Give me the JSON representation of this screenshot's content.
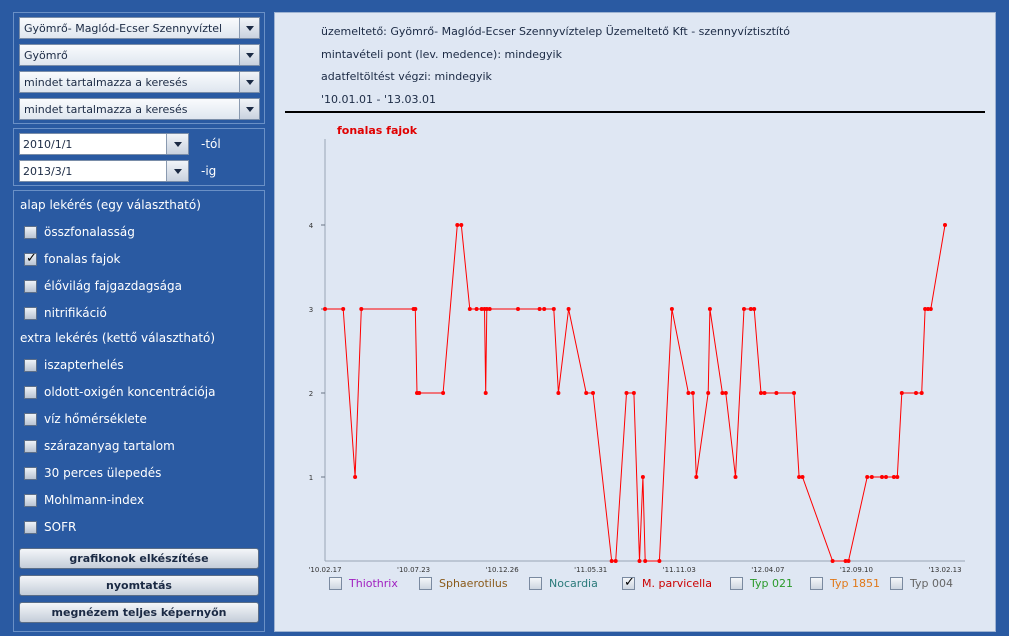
{
  "filters": {
    "operator_select": "Gyömrő- Maglód-Ecser Szennyvíztel",
    "location_select": "Gyömrő",
    "search_mode_1": "mindet tartalmazza a keresés",
    "search_mode_2": "mindet tartalmazza a keresés"
  },
  "dates": {
    "from_value": "2010/1/1",
    "from_suffix": "-tól",
    "to_value": "2013/3/1",
    "to_suffix": "-ig"
  },
  "options": {
    "basic_heading": "alap lekérés (egy választható)",
    "basic_items": [
      {
        "label": "összfonalasság",
        "checked": false
      },
      {
        "label": "fonalas fajok",
        "checked": true
      },
      {
        "label": "élővilág fajgazdagsága",
        "checked": false
      },
      {
        "label": "nitrifikáció",
        "checked": false
      }
    ],
    "extra_heading": "extra lekérés (kettő választható)",
    "extra_items": [
      {
        "label": "iszapterhelés",
        "checked": false
      },
      {
        "label": "oldott-oxigén koncentrációja",
        "checked": false
      },
      {
        "label": "víz hőmérséklete",
        "checked": false
      },
      {
        "label": "szárazanyag tartalom",
        "checked": false
      },
      {
        "label": "30 perces ülepedés",
        "checked": false
      },
      {
        "label": "Mohlmann-index",
        "checked": false
      },
      {
        "label": "SOFR",
        "checked": false
      }
    ]
  },
  "buttons": {
    "make_charts": "grafikonok elkészítése",
    "print": "nyomtatás",
    "fullscreen": "megnézem teljes képernyőn"
  },
  "header": {
    "operator_line": "üzemeltető: Gyömrő- Maglód-Ecser Szennyvíztelep Üzemeltető Kft - szennyvíztisztító",
    "sampling_line": "mintavételi pont (lev. medence): mindegyik",
    "uploader_line": "adatfeltöltést végzi: mindegyik",
    "period_line": "'10.01.01 - '13.03.01"
  },
  "colors": {
    "series_line": "#ff0000",
    "title": "#e00000",
    "legend_thiothrix": "#a020c0",
    "legend_sphaerotilus": "#8a5a1a",
    "legend_nocardia": "#2a7a7a",
    "legend_mparvicella": "#cc0000",
    "legend_typ021": "#2a9a2a",
    "legend_typ1851": "#e07818",
    "legend_typ004": "#666666"
  },
  "legend": [
    {
      "label": "Thiothrix",
      "checked": false,
      "color_key": "legend_thiothrix"
    },
    {
      "label": "Sphaerotilus",
      "checked": false,
      "color_key": "legend_sphaerotilus"
    },
    {
      "label": "Nocardia",
      "checked": false,
      "color_key": "legend_nocardia"
    },
    {
      "label": "M. parvicella",
      "checked": true,
      "color_key": "legend_mparvicella"
    },
    {
      "label": "Typ 021",
      "checked": false,
      "color_key": "legend_typ021"
    },
    {
      "label": "Typ 1851",
      "checked": false,
      "color_key": "legend_typ1851"
    },
    {
      "label": "Typ 004",
      "checked": false,
      "color_key": "legend_typ004"
    }
  ],
  "chart_data": {
    "type": "line",
    "title": "fonalas fajok",
    "xlabel": "",
    "ylabel": "",
    "ylim": [
      0,
      5
    ],
    "yticks": [
      1,
      2,
      3,
      4
    ],
    "xlim": [
      "2010-02-17",
      "2013-02-13"
    ],
    "xticks": [
      "'10.02.17",
      "'10.07.23",
      "'10.12.26",
      "'11.05.31",
      "'11.11.03",
      "'12.04.07",
      "'12.09.10",
      "'13.02.13"
    ],
    "grid": false,
    "series": [
      {
        "name": "M. parvicella",
        "points": [
          {
            "x": "2010-02-17",
            "y": 3
          },
          {
            "x": "2010-03-21",
            "y": 3
          },
          {
            "x": "2010-04-11",
            "y": 1
          },
          {
            "x": "2010-04-22",
            "y": 3
          },
          {
            "x": "2010-07-23",
            "y": 3
          },
          {
            "x": "2010-07-26",
            "y": 3
          },
          {
            "x": "2010-07-29",
            "y": 2
          },
          {
            "x": "2010-08-02",
            "y": 2
          },
          {
            "x": "2010-09-13",
            "y": 2
          },
          {
            "x": "2010-10-08",
            "y": 4
          },
          {
            "x": "2010-10-15",
            "y": 4
          },
          {
            "x": "2010-10-30",
            "y": 3
          },
          {
            "x": "2010-11-11",
            "y": 3
          },
          {
            "x": "2010-11-20",
            "y": 3
          },
          {
            "x": "2010-11-25",
            "y": 3
          },
          {
            "x": "2010-11-27",
            "y": 2
          },
          {
            "x": "2010-11-29",
            "y": 3
          },
          {
            "x": "2010-12-04",
            "y": 3
          },
          {
            "x": "2011-01-23",
            "y": 3
          },
          {
            "x": "2011-03-02",
            "y": 3
          },
          {
            "x": "2011-03-10",
            "y": 3
          },
          {
            "x": "2011-03-27",
            "y": 3
          },
          {
            "x": "2011-04-04",
            "y": 2
          },
          {
            "x": "2011-04-22",
            "y": 3
          },
          {
            "x": "2011-05-23",
            "y": 2
          },
          {
            "x": "2011-06-04",
            "y": 2
          },
          {
            "x": "2011-07-07",
            "y": 0
          },
          {
            "x": "2011-07-14",
            "y": 0
          },
          {
            "x": "2011-08-02",
            "y": 2
          },
          {
            "x": "2011-08-15",
            "y": 2
          },
          {
            "x": "2011-08-25",
            "y": 0
          },
          {
            "x": "2011-08-31",
            "y": 1
          },
          {
            "x": "2011-09-04",
            "y": 0
          },
          {
            "x": "2011-09-29",
            "y": 0
          },
          {
            "x": "2011-10-21",
            "y": 3
          },
          {
            "x": "2011-11-19",
            "y": 2
          },
          {
            "x": "2011-11-27",
            "y": 2
          },
          {
            "x": "2011-12-03",
            "y": 1
          },
          {
            "x": "2011-12-24",
            "y": 2
          },
          {
            "x": "2011-12-27",
            "y": 3
          },
          {
            "x": "2012-01-18",
            "y": 2
          },
          {
            "x": "2012-01-24",
            "y": 2
          },
          {
            "x": "2012-02-10",
            "y": 1
          },
          {
            "x": "2012-02-25",
            "y": 3
          },
          {
            "x": "2012-03-08",
            "y": 3
          },
          {
            "x": "2012-03-14",
            "y": 3
          },
          {
            "x": "2012-03-26",
            "y": 2
          },
          {
            "x": "2012-04-01",
            "y": 2
          },
          {
            "x": "2012-04-22",
            "y": 2
          },
          {
            "x": "2012-05-23",
            "y": 2
          },
          {
            "x": "2012-06-01",
            "y": 1
          },
          {
            "x": "2012-06-07",
            "y": 1
          },
          {
            "x": "2012-07-30",
            "y": 0
          },
          {
            "x": "2012-08-22",
            "y": 0
          },
          {
            "x": "2012-08-27",
            "y": 0
          },
          {
            "x": "2012-09-29",
            "y": 1
          },
          {
            "x": "2012-10-07",
            "y": 1
          },
          {
            "x": "2012-10-25",
            "y": 1
          },
          {
            "x": "2012-11-01",
            "y": 1
          },
          {
            "x": "2012-11-15",
            "y": 1
          },
          {
            "x": "2012-11-21",
            "y": 1
          },
          {
            "x": "2012-11-29",
            "y": 2
          },
          {
            "x": "2012-12-24",
            "y": 2
          },
          {
            "x": "2013-01-03",
            "y": 2
          },
          {
            "x": "2013-01-09",
            "y": 3
          },
          {
            "x": "2013-01-14",
            "y": 3
          },
          {
            "x": "2013-01-19",
            "y": 3
          },
          {
            "x": "2013-02-13",
            "y": 4
          }
        ]
      }
    ]
  }
}
